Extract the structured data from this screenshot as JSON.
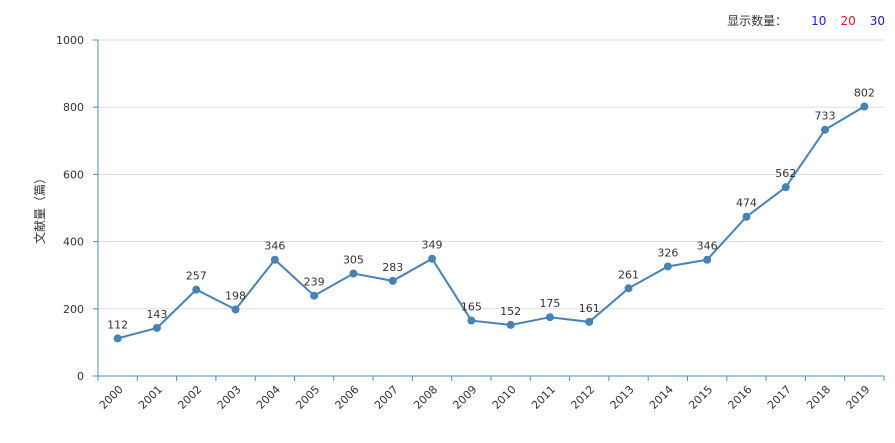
{
  "controls": {
    "label": "显示数量：",
    "options": [
      {
        "label": "10",
        "color": "#1a1aff"
      },
      {
        "label": "20",
        "color": "#e8132b"
      },
      {
        "label": "30",
        "color": "#1a1aa8"
      }
    ]
  },
  "chart_data": {
    "type": "line",
    "title": "",
    "xlabel": "",
    "ylabel": "文献量（篇）",
    "ylim": [
      0,
      1000
    ],
    "yticks": [
      0,
      200,
      400,
      600,
      800,
      1000
    ],
    "categories": [
      "2000",
      "2001",
      "2002",
      "2003",
      "2004",
      "2005",
      "2006",
      "2007",
      "2008",
      "2009",
      "2010",
      "2011",
      "2012",
      "2013",
      "2014",
      "2015",
      "2016",
      "2017",
      "2018",
      "2019"
    ],
    "values": [
      112,
      143,
      257,
      198,
      346,
      239,
      305,
      283,
      349,
      165,
      152,
      175,
      161,
      261,
      326,
      346,
      474,
      562,
      733,
      802
    ],
    "series_color": "#4682b4",
    "grid": true
  }
}
